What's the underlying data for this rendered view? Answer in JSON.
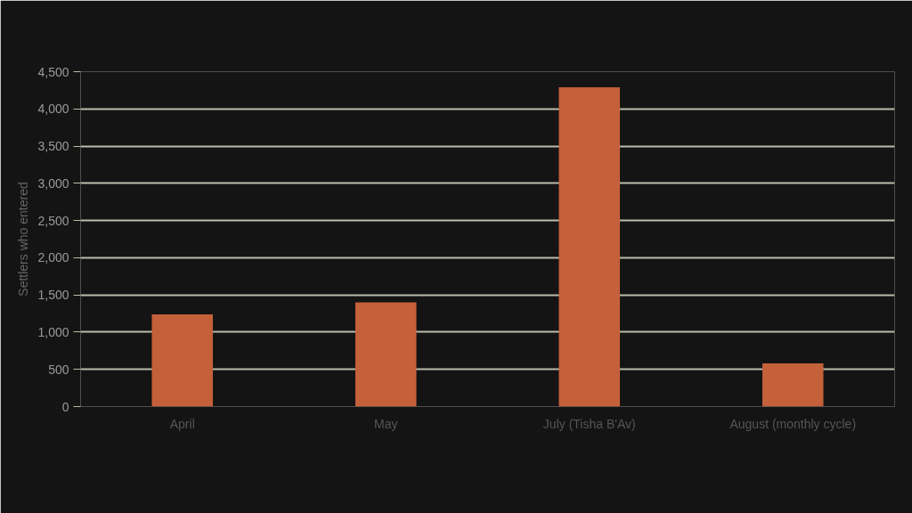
{
  "chart_data": {
    "type": "bar",
    "ylabel": "Settlers who entered",
    "categories": [
      "April",
      "May",
      "July (Tisha B'Av)",
      "August (monthly cycle)"
    ],
    "values": [
      1240,
      1400,
      4290,
      580
    ],
    "color": "#c4603a",
    "ylim": [
      0,
      4500
    ],
    "yticks": [
      {
        "value": 0,
        "label": "0"
      },
      {
        "value": 500,
        "label": "500"
      },
      {
        "value": 1000,
        "label": "1,000"
      },
      {
        "value": 1500,
        "label": "1,500"
      },
      {
        "value": 2000,
        "label": "2,000"
      },
      {
        "value": 2500,
        "label": "2,500"
      },
      {
        "value": 3000,
        "label": "3,000"
      },
      {
        "value": 3500,
        "label": "3,500"
      },
      {
        "value": 4000,
        "label": "4,000"
      },
      {
        "value": 4500,
        "label": "4,500"
      }
    ],
    "grid": "y"
  }
}
